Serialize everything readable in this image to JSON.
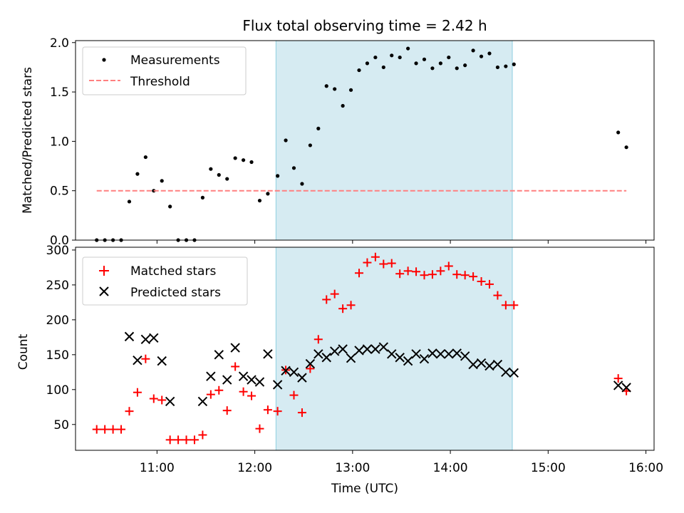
{
  "chart_data": [
    {
      "type": "scatter",
      "panel": "top",
      "title": "Flux total observing time = 2.42 h",
      "xlabel": "",
      "ylabel": "Matched/Predicted stars",
      "xlim": [
        "10:10",
        "16:05"
      ],
      "ylim": [
        0,
        2.02
      ],
      "yticks": [
        0.0,
        0.5,
        1.0,
        1.5,
        2.0
      ],
      "ytick_labels": [
        "0.0",
        "0.5",
        "1.0",
        "1.5",
        "2.0"
      ],
      "grid": false,
      "legend": "top-left",
      "shaded_region": {
        "start": "12:13",
        "end": "14:38",
        "color": "#add8e6"
      },
      "series": [
        {
          "name": "Measurements",
          "marker": "dot",
          "color": "#000000",
          "points": [
            [
              "10:23",
              0.0
            ],
            [
              "10:28",
              0.0
            ],
            [
              "10:33",
              0.0
            ],
            [
              "10:38",
              0.0
            ],
            [
              "10:43",
              0.39
            ],
            [
              "10:48",
              0.67
            ],
            [
              "10:53",
              0.84
            ],
            [
              "10:58",
              0.5
            ],
            [
              "11:03",
              0.6
            ],
            [
              "11:08",
              0.34
            ],
            [
              "11:13",
              0.0
            ],
            [
              "11:18",
              0.0
            ],
            [
              "11:23",
              0.0
            ],
            [
              "11:28",
              0.43
            ],
            [
              "11:33",
              0.72
            ],
            [
              "11:38",
              0.66
            ],
            [
              "11:43",
              0.62
            ],
            [
              "11:48",
              0.83
            ],
            [
              "11:53",
              0.81
            ],
            [
              "11:58",
              0.79
            ],
            [
              "12:03",
              0.4
            ],
            [
              "12:08",
              0.47
            ],
            [
              "12:14",
              0.65
            ],
            [
              "12:19",
              1.01
            ],
            [
              "12:24",
              0.73
            ],
            [
              "12:29",
              0.57
            ],
            [
              "12:34",
              0.96
            ],
            [
              "12:39",
              1.13
            ],
            [
              "12:44",
              1.56
            ],
            [
              "12:49",
              1.53
            ],
            [
              "12:54",
              1.36
            ],
            [
              "12:59",
              1.52
            ],
            [
              "13:04",
              1.72
            ],
            [
              "13:09",
              1.79
            ],
            [
              "13:14",
              1.85
            ],
            [
              "13:19",
              1.75
            ],
            [
              "13:24",
              1.87
            ],
            [
              "13:29",
              1.85
            ],
            [
              "13:34",
              1.94
            ],
            [
              "13:39",
              1.79
            ],
            [
              "13:44",
              1.83
            ],
            [
              "13:49",
              1.74
            ],
            [
              "13:54",
              1.79
            ],
            [
              "13:59",
              1.85
            ],
            [
              "14:04",
              1.74
            ],
            [
              "14:09",
              1.77
            ],
            [
              "14:14",
              1.92
            ],
            [
              "14:19",
              1.86
            ],
            [
              "14:24",
              1.89
            ],
            [
              "14:29",
              1.75
            ],
            [
              "14:34",
              1.76
            ],
            [
              "14:39",
              1.78
            ],
            [
              "15:43",
              1.09
            ],
            [
              "15:48",
              0.94
            ]
          ]
        },
        {
          "name": "Threshold",
          "style": "dashed",
          "color": "#ff8080",
          "points": [
            [
              "10:23",
              0.5
            ],
            [
              "15:48",
              0.5
            ]
          ]
        }
      ]
    },
    {
      "type": "scatter",
      "panel": "bottom",
      "title": "",
      "xlabel": "Time (UTC)",
      "ylabel": "Count",
      "xlim": [
        "10:10",
        "16:05"
      ],
      "ylim": [
        13,
        304
      ],
      "xticks": [
        "11:00",
        "12:00",
        "13:00",
        "14:00",
        "15:00",
        "16:00"
      ],
      "yticks": [
        50,
        100,
        150,
        200,
        250,
        300
      ],
      "grid": false,
      "legend": "top-left",
      "shaded_region": {
        "start": "12:13",
        "end": "14:38",
        "color": "#add8e6"
      },
      "series": [
        {
          "name": "Matched stars",
          "marker": "plus",
          "color": "#ff0000",
          "points": [
            [
              "10:23",
              43
            ],
            [
              "10:28",
              43
            ],
            [
              "10:33",
              43
            ],
            [
              "10:38",
              43
            ],
            [
              "10:43",
              69
            ],
            [
              "10:48",
              96
            ],
            [
              "10:53",
              144
            ],
            [
              "10:58",
              87
            ],
            [
              "11:03",
              85
            ],
            [
              "11:08",
              28
            ],
            [
              "11:13",
              28
            ],
            [
              "11:18",
              28
            ],
            [
              "11:23",
              28
            ],
            [
              "11:28",
              35
            ],
            [
              "11:33",
              93
            ],
            [
              "11:38",
              99
            ],
            [
              "11:43",
              70
            ],
            [
              "11:48",
              133
            ],
            [
              "11:53",
              97
            ],
            [
              "11:58",
              91
            ],
            [
              "12:03",
              44
            ],
            [
              "12:08",
              71
            ],
            [
              "12:14",
              69
            ],
            [
              "12:19",
              128
            ],
            [
              "12:24",
              92
            ],
            [
              "12:29",
              67
            ],
            [
              "12:34",
              130
            ],
            [
              "12:39",
              172
            ],
            [
              "12:44",
              229
            ],
            [
              "12:49",
              237
            ],
            [
              "12:54",
              216
            ],
            [
              "12:59",
              221
            ],
            [
              "13:04",
              267
            ],
            [
              "13:09",
              282
            ],
            [
              "13:14",
              290
            ],
            [
              "13:19",
              280
            ],
            [
              "13:24",
              281
            ],
            [
              "13:29",
              266
            ],
            [
              "13:34",
              270
            ],
            [
              "13:39",
              269
            ],
            [
              "13:44",
              264
            ],
            [
              "13:49",
              265
            ],
            [
              "13:54",
              270
            ],
            [
              "13:59",
              277
            ],
            [
              "14:04",
              265
            ],
            [
              "14:09",
              264
            ],
            [
              "14:14",
              262
            ],
            [
              "14:19",
              255
            ],
            [
              "14:24",
              251
            ],
            [
              "14:29",
              235
            ],
            [
              "14:34",
              221
            ],
            [
              "14:39",
              221
            ],
            [
              "15:43",
              116
            ],
            [
              "15:48",
              98
            ]
          ]
        },
        {
          "name": "Predicted stars",
          "marker": "x",
          "color": "#000000",
          "points": [
            [
              "10:43",
              176
            ],
            [
              "10:48",
              142
            ],
            [
              "10:53",
              172
            ],
            [
              "10:58",
              174
            ],
            [
              "11:03",
              141
            ],
            [
              "11:08",
              83
            ],
            [
              "11:28",
              83
            ],
            [
              "11:33",
              119
            ],
            [
              "11:38",
              150
            ],
            [
              "11:43",
              114
            ],
            [
              "11:48",
              160
            ],
            [
              "11:53",
              119
            ],
            [
              "11:58",
              114
            ],
            [
              "12:03",
              111
            ],
            [
              "12:08",
              151
            ],
            [
              "12:14",
              107
            ],
            [
              "12:19",
              127
            ],
            [
              "12:24",
              125
            ],
            [
              "12:29",
              117
            ],
            [
              "12:34",
              137
            ],
            [
              "12:39",
              151
            ],
            [
              "12:44",
              146
            ],
            [
              "12:49",
              155
            ],
            [
              "12:54",
              158
            ],
            [
              "12:59",
              145
            ],
            [
              "13:04",
              156
            ],
            [
              "13:09",
              158
            ],
            [
              "13:14",
              158
            ],
            [
              "13:19",
              161
            ],
            [
              "13:24",
              151
            ],
            [
              "13:29",
              146
            ],
            [
              "13:34",
              141
            ],
            [
              "13:39",
              151
            ],
            [
              "13:44",
              144
            ],
            [
              "13:49",
              152
            ],
            [
              "13:54",
              151
            ],
            [
              "13:59",
              151
            ],
            [
              "14:04",
              152
            ],
            [
              "14:09",
              148
            ],
            [
              "14:14",
              136
            ],
            [
              "14:19",
              138
            ],
            [
              "14:24",
              134
            ],
            [
              "14:29",
              136
            ],
            [
              "14:34",
              125
            ],
            [
              "14:39",
              124
            ],
            [
              "15:43",
              106
            ],
            [
              "15:48",
              103
            ]
          ]
        }
      ]
    }
  ]
}
